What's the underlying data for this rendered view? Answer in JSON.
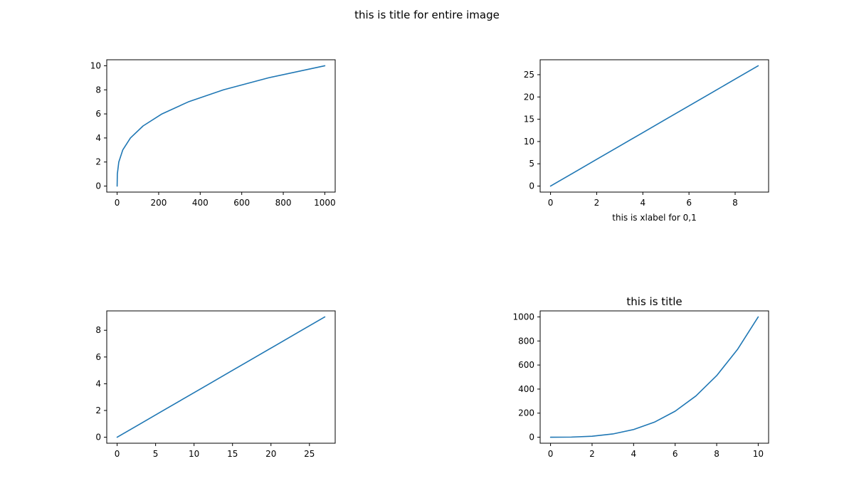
{
  "figure": {
    "title": "this is title for entire image",
    "line_color": "#1f77b4"
  },
  "chart_data": [
    {
      "type": "line",
      "title": "",
      "xlabel": "",
      "ylabel": "",
      "grid": false,
      "xlim": [
        -50,
        1050
      ],
      "ylim": [
        -0.5,
        10.5
      ],
      "xticks": [
        0,
        200,
        400,
        600,
        800,
        1000
      ],
      "yticks": [
        0,
        2,
        4,
        6,
        8,
        10
      ],
      "series": [
        {
          "x": [
            0,
            1,
            8,
            27,
            64,
            125,
            216,
            343,
            512,
            729,
            1000
          ],
          "y": [
            0,
            1,
            2,
            3,
            4,
            5,
            6,
            7,
            8,
            9,
            10
          ]
        }
      ]
    },
    {
      "type": "line",
      "title": "",
      "xlabel": "this is xlabel for 0,1",
      "ylabel": "",
      "grid": false,
      "xlim": [
        -0.45,
        9.45
      ],
      "ylim": [
        -1.35,
        28.35
      ],
      "xticks": [
        0,
        2,
        4,
        6,
        8
      ],
      "yticks": [
        0,
        5,
        10,
        15,
        20,
        25
      ],
      "series": [
        {
          "x": [
            0,
            1,
            2,
            3,
            4,
            5,
            6,
            7,
            8,
            9
          ],
          "y": [
            0,
            3,
            6,
            9,
            12,
            15,
            18,
            21,
            24,
            27
          ]
        }
      ]
    },
    {
      "type": "line",
      "title": "",
      "xlabel": "",
      "ylabel": "",
      "grid": false,
      "xlim": [
        -1.35,
        28.35
      ],
      "ylim": [
        -0.45,
        9.45
      ],
      "xticks": [
        0,
        5,
        10,
        15,
        20,
        25
      ],
      "yticks": [
        0,
        2,
        4,
        6,
        8
      ],
      "series": [
        {
          "x": [
            0,
            3,
            6,
            9,
            12,
            15,
            18,
            21,
            24,
            27
          ],
          "y": [
            0,
            1,
            2,
            3,
            4,
            5,
            6,
            7,
            8,
            9
          ]
        }
      ]
    },
    {
      "type": "line",
      "title": "this is title",
      "xlabel": "",
      "ylabel": "",
      "grid": false,
      "xlim": [
        -0.5,
        10.5
      ],
      "ylim": [
        -50,
        1050
      ],
      "xticks": [
        0,
        2,
        4,
        6,
        8,
        10
      ],
      "yticks": [
        0,
        200,
        400,
        600,
        800,
        1000
      ],
      "series": [
        {
          "x": [
            0,
            1,
            2,
            3,
            4,
            5,
            6,
            7,
            8,
            9,
            10
          ],
          "y": [
            0,
            1,
            8,
            27,
            64,
            125,
            216,
            343,
            512,
            729,
            1000
          ]
        }
      ]
    }
  ]
}
